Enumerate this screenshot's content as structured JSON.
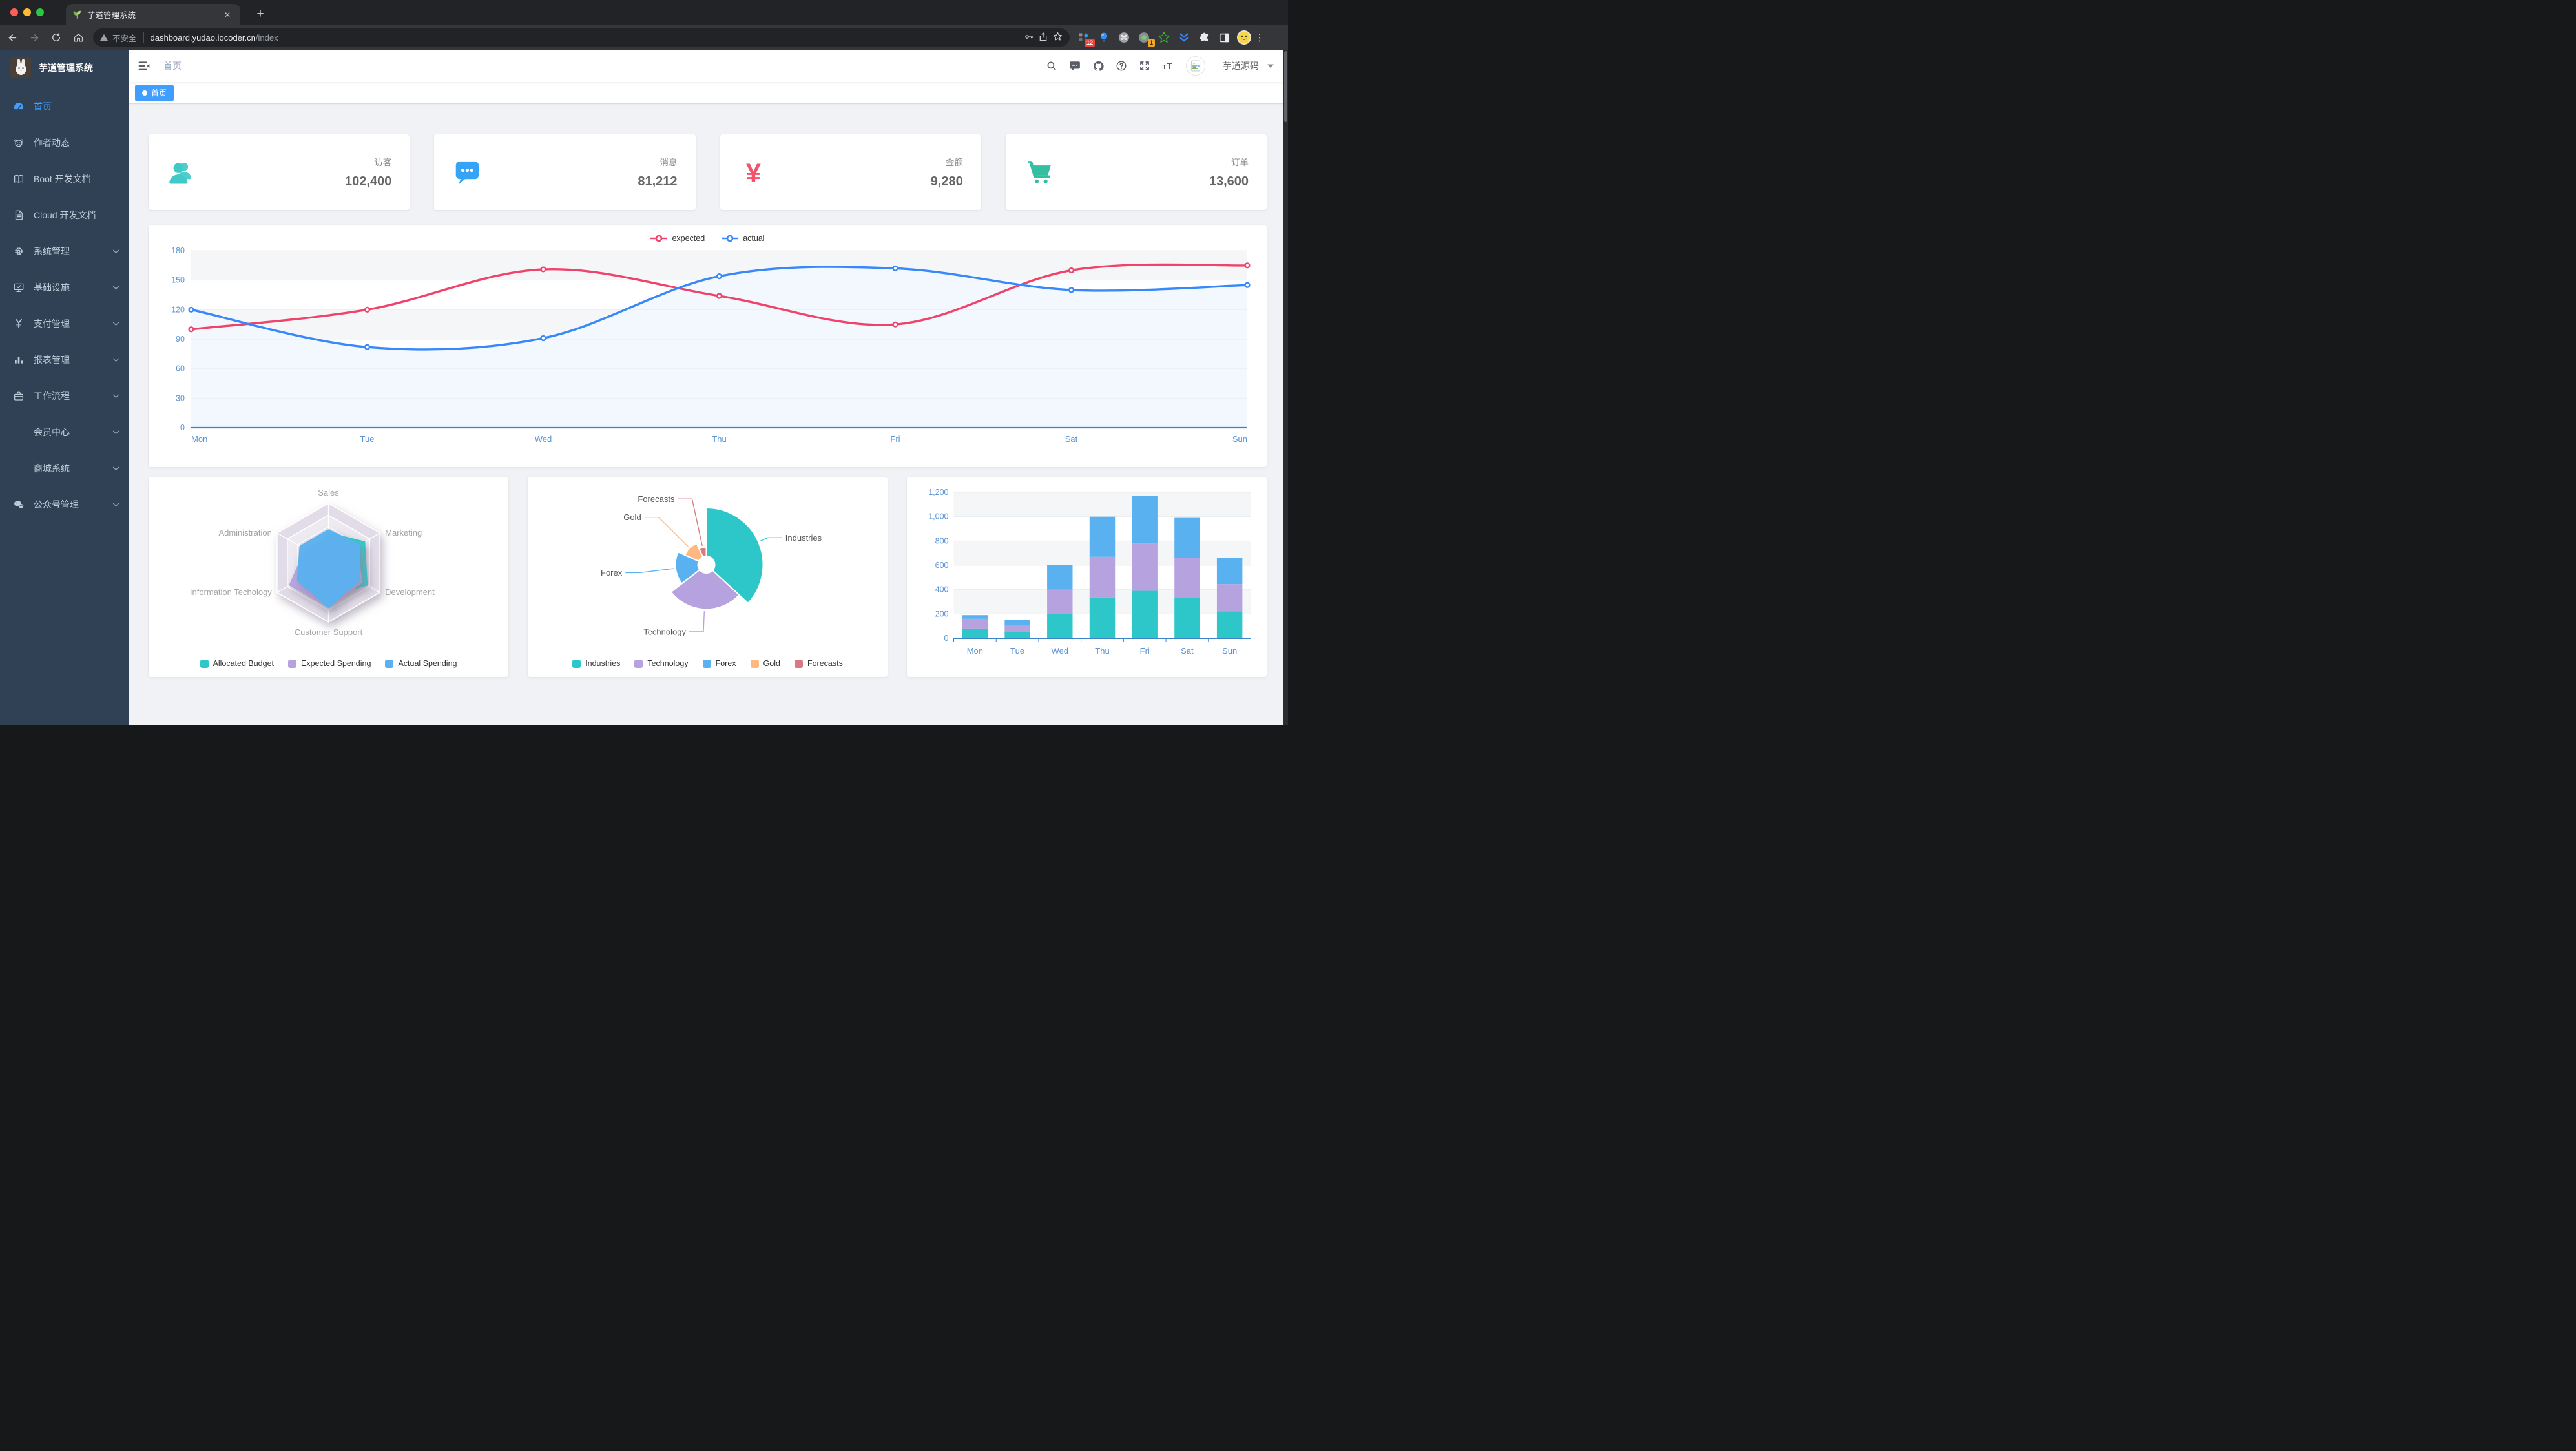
{
  "browser": {
    "tab_title": "芋道管理系统",
    "tab_close": "✕",
    "new_tab": "+",
    "security_label": "不安全",
    "url_host": "dashboard.yudao.iocoder.cn",
    "url_path": "/index",
    "ext_badge_a": "12",
    "ext_badge_b": "1",
    "menu_dots": "⋮"
  },
  "sidebar": {
    "logo_title": "芋道管理系统",
    "items": [
      {
        "id": "home",
        "icon": "dashboard-icon",
        "label": "首页",
        "active": true,
        "arrow": false
      },
      {
        "id": "author",
        "icon": "peoples-icon",
        "label": "作者动态",
        "active": false,
        "arrow": false
      },
      {
        "id": "boot-doc",
        "icon": "education-icon",
        "label": "Boot 开发文档",
        "active": false,
        "arrow": false
      },
      {
        "id": "cloud-doc",
        "icon": "documentation-icon",
        "label": "Cloud 开发文档",
        "active": false,
        "arrow": false
      },
      {
        "id": "system",
        "icon": "gear-icon",
        "label": "系统管理",
        "active": false,
        "arrow": true
      },
      {
        "id": "infra",
        "icon": "monitor-icon",
        "label": "基础设施",
        "active": false,
        "arrow": true
      },
      {
        "id": "pay",
        "icon": "yen-icon",
        "label": "支付管理",
        "active": false,
        "arrow": true
      },
      {
        "id": "report",
        "icon": "bar-chart-icon",
        "label": "报表管理",
        "active": false,
        "arrow": true
      },
      {
        "id": "workflow",
        "icon": "toolbox-icon",
        "label": "工作流程",
        "active": false,
        "arrow": true
      },
      {
        "id": "member",
        "icon": null,
        "label": "会员中心",
        "active": false,
        "arrow": true
      },
      {
        "id": "mall",
        "icon": null,
        "label": "商城系统",
        "active": false,
        "arrow": true
      },
      {
        "id": "mp",
        "icon": "wechat-icon",
        "label": "公众号管理",
        "active": false,
        "arrow": true
      }
    ]
  },
  "navbar": {
    "breadcrumb": "首页",
    "username": "芋道源码"
  },
  "tags": {
    "items": [
      {
        "label": "首页",
        "active": true
      }
    ]
  },
  "stats": [
    {
      "label": "访客",
      "value": "102,400",
      "icon": "peoples-stat-icon",
      "color": "#40c9c6"
    },
    {
      "label": "消息",
      "value": "81,212",
      "icon": "message-stat-icon",
      "color": "#36a3f7"
    },
    {
      "label": "金额",
      "value": "9,280",
      "icon": "money-stat-icon",
      "color": "#f4516c"
    },
    {
      "label": "订单",
      "value": "13,600",
      "icon": "shopping-stat-icon",
      "color": "#34bfa3"
    }
  ],
  "colors": {
    "accent": "#409eff",
    "sidebar_bg": "#304156",
    "sidebar_text": "#bfcbd9",
    "axis_label": "#5a94d6",
    "axis_line": "#3e82c8",
    "band": "#f5f6f8",
    "grid": "#e8ecf1",
    "palette_macarons": [
      "#2EC7C9",
      "#B6A2DE",
      "#5AB1EF",
      "#FFB980",
      "#D87A80"
    ]
  },
  "chart_data": [
    {
      "id": "visits-line",
      "type": "line",
      "categories": [
        "Mon",
        "Tue",
        "Wed",
        "Thu",
        "Fri",
        "Sat",
        "Sun"
      ],
      "series": [
        {
          "name": "expected",
          "color": "#F0436B",
          "values": [
            100,
            120,
            161,
            134,
            105,
            160,
            165
          ]
        },
        {
          "name": "actual",
          "color": "#3888FA",
          "values": [
            120,
            82,
            91,
            154,
            162,
            140,
            145
          ],
          "area": "#f3f8ff"
        }
      ],
      "ylim": [
        0,
        180
      ],
      "ytick": 30,
      "legend_position": "top",
      "grid": true
    },
    {
      "id": "budget-radar",
      "type": "radar",
      "indicators": [
        {
          "name": "Sales",
          "max": 10000
        },
        {
          "name": "Administration",
          "max": 20000
        },
        {
          "name": "Information Techology",
          "max": 20000
        },
        {
          "name": "Customer Support",
          "max": 20000
        },
        {
          "name": "Development",
          "max": 20000
        },
        {
          "name": "Marketing",
          "max": 20000
        }
      ],
      "series": [
        {
          "name": "Allocated Budget",
          "color": "#2EC7C9",
          "values": [
            5000,
            7000,
            12000,
            11000,
            15000,
            14000
          ]
        },
        {
          "name": "Expected Spending",
          "color": "#B6A2DE",
          "values": [
            4000,
            9000,
            15000,
            15000,
            13000,
            11000
          ]
        },
        {
          "name": "Actual Spending",
          "color": "#5AB1EF",
          "values": [
            5500,
            11000,
            12000,
            15000,
            12000,
            12000
          ]
        }
      ],
      "legend_position": "bottom"
    },
    {
      "id": "sales-pie",
      "type": "pie",
      "rose": true,
      "slices": [
        {
          "name": "Industries",
          "value": 320,
          "color": "#2EC7C9"
        },
        {
          "name": "Technology",
          "value": 240,
          "color": "#B6A2DE"
        },
        {
          "name": "Forex",
          "value": 149,
          "color": "#5AB1EF"
        },
        {
          "name": "Gold",
          "value": 100,
          "color": "#FFB980"
        },
        {
          "name": "Forecasts",
          "value": 59,
          "color": "#D87A80"
        }
      ],
      "legend_position": "bottom"
    },
    {
      "id": "weekly-bar",
      "type": "bar",
      "stacked": true,
      "categories": [
        "Mon",
        "Tue",
        "Wed",
        "Thu",
        "Fri",
        "Sat",
        "Sun"
      ],
      "series": [
        {
          "color": "#2EC7C9",
          "values": [
            80,
            52,
            200,
            335,
            390,
            330,
            220
          ]
        },
        {
          "color": "#B6A2DE",
          "values": [
            80,
            52,
            200,
            335,
            390,
            330,
            225
          ]
        },
        {
          "color": "#5AB1EF",
          "values": [
            30,
            50,
            200,
            330,
            390,
            330,
            215
          ]
        }
      ],
      "ylim": [
        0,
        1200
      ],
      "ytick": 200
    }
  ]
}
